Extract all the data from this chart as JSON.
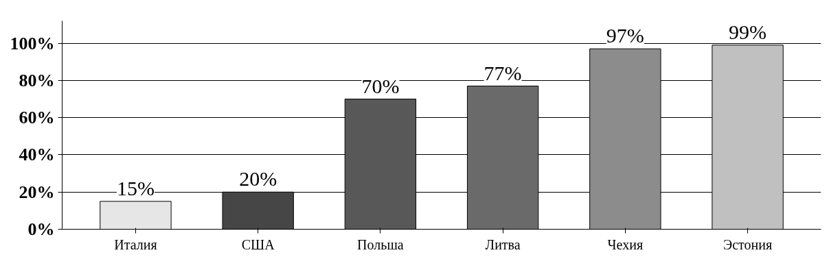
{
  "chart_data": {
    "type": "bar",
    "categories": [
      "Италия",
      "США",
      "Польша",
      "Литва",
      "Чехия",
      "Эстония"
    ],
    "values": [
      15,
      20,
      70,
      77,
      97,
      99
    ],
    "colors": [
      "#e6e6e6",
      "#464646",
      "#585858",
      "#6a6a6a",
      "#8c8c8c",
      "#c0c0c0"
    ],
    "ylim": [
      0,
      112
    ],
    "yticks": [
      {
        "value": 0,
        "label": "0%"
      },
      {
        "value": 20,
        "label": "20%"
      },
      {
        "value": 40,
        "label": "40%"
      },
      {
        "value": 60,
        "label": "60%"
      },
      {
        "value": 80,
        "label": "80%"
      },
      {
        "value": 100,
        "label": "100%"
      }
    ],
    "value_labels": [
      "15%",
      "20%",
      "70%",
      "77%",
      "97%",
      "99%"
    ],
    "grid": "y"
  }
}
